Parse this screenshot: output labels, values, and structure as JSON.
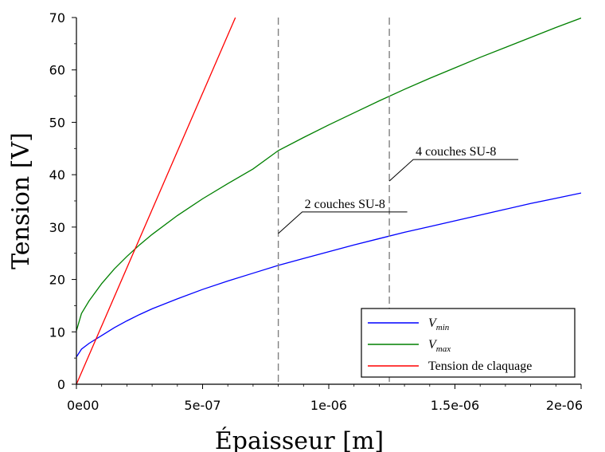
{
  "chart_data": {
    "type": "line",
    "xlabel": "Épaisseur [m]",
    "ylabel": "Tension [V]",
    "xlim": [
      0,
      2e-06
    ],
    "ylim": [
      0,
      70
    ],
    "x_ticks": [
      "0e00",
      "5e-07",
      "1e-06",
      "1.5e-06",
      "2e-06"
    ],
    "y_ticks": [
      "0",
      "10",
      "20",
      "30",
      "40",
      "50",
      "60",
      "70"
    ],
    "x_tick_values": [
      0,
      5e-07,
      1e-06,
      1.5e-06,
      2e-06
    ],
    "y_tick_values": [
      0,
      10,
      20,
      30,
      40,
      50,
      60,
      70
    ],
    "grid": false,
    "legend_position": "bottom-right",
    "series": [
      {
        "name": "V",
        "name_sub": "min",
        "color": "#0000ff",
        "x": [
          0,
          2e-08,
          5e-08,
          1e-07,
          1.5e-07,
          2e-07,
          2.5e-07,
          3e-07,
          4e-07,
          5e-07,
          6e-07,
          7e-07,
          8e-07,
          9e-07,
          1e-06,
          1.1e-06,
          1.2e-06,
          1.3e-06,
          1.4e-06,
          1.5e-06,
          1.6e-06,
          1.7e-06,
          1.8e-06,
          1.9e-06,
          2e-06
        ],
        "y": [
          5.2,
          6.7,
          7.8,
          9.3,
          10.8,
          12.1,
          13.3,
          14.4,
          16.3,
          18.1,
          19.7,
          21.2,
          22.7,
          24.0,
          25.3,
          26.6,
          27.8,
          29.0,
          30.1,
          31.2,
          32.3,
          33.4,
          34.5,
          35.5,
          36.5
        ]
      },
      {
        "name": "V",
        "name_sub": "max",
        "color": "#008000",
        "x": [
          0,
          2e-08,
          5e-08,
          1e-07,
          1.5e-07,
          2e-07,
          2.5e-07,
          3e-07,
          4e-07,
          5e-07,
          6e-07,
          7e-07,
          8e-07,
          9e-07,
          1e-06,
          1.1e-06,
          1.2e-06,
          1.3e-06,
          1.4e-06,
          1.5e-06,
          1.6e-06,
          1.7e-06,
          1.8e-06,
          1.9e-06,
          2e-06
        ],
        "y": [
          10.2,
          13.5,
          15.9,
          19.2,
          22.0,
          24.4,
          26.6,
          28.6,
          32.2,
          35.4,
          38.3,
          41.1,
          44.6,
          47.1,
          49.5,
          51.8,
          54.1,
          56.3,
          58.4,
          60.4,
          62.4,
          64.3,
          66.2,
          68.1,
          69.9
        ]
      },
      {
        "name": "Tension de claquage",
        "color": "#ff0000",
        "x": [
          0,
          6.3e-07
        ],
        "y": [
          0,
          70
        ]
      }
    ],
    "vlines": [
      {
        "x": 8e-07,
        "style": "dashed",
        "color": "#808080"
      },
      {
        "x": 1.24e-06,
        "style": "dashed",
        "color": "#808080"
      }
    ],
    "annotations": [
      {
        "text": "2 couches SU-8",
        "line_x": 8e-07,
        "label_y": 33.5
      },
      {
        "text": "4 couches SU-8",
        "line_x": 1.24e-06,
        "label_y": 43.5
      }
    ]
  }
}
